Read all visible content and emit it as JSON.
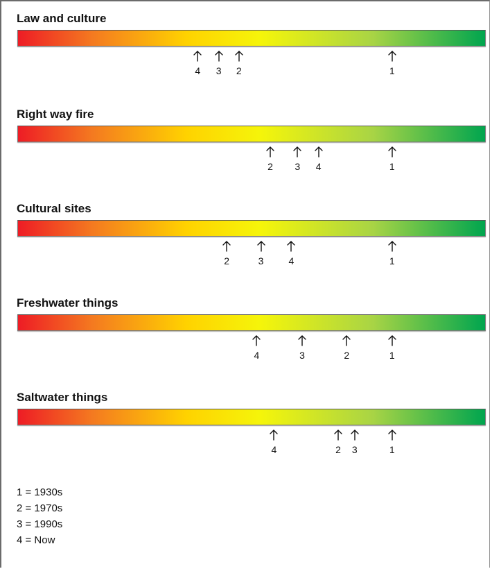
{
  "scale": {
    "colors": [
      "#ee1c25",
      "#f47a20",
      "#ffd200",
      "#f5f50a",
      "#a8d445",
      "#00a54f"
    ]
  },
  "sections": [
    {
      "title": "Law and culture",
      "markers": [
        {
          "label": "4",
          "value": 0.385
        },
        {
          "label": "3",
          "value": 0.43
        },
        {
          "label": "2",
          "value": 0.473
        },
        {
          "label": "1",
          "value": 0.8
        }
      ]
    },
    {
      "title": "Right way fire",
      "markers": [
        {
          "label": "2",
          "value": 0.54
        },
        {
          "label": "3",
          "value": 0.598
        },
        {
          "label": "4",
          "value": 0.643
        },
        {
          "label": "1",
          "value": 0.8
        }
      ]
    },
    {
      "title": "Cultural sites",
      "markers": [
        {
          "label": "2",
          "value": 0.447
        },
        {
          "label": "3",
          "value": 0.52
        },
        {
          "label": "4",
          "value": 0.585
        },
        {
          "label": "1",
          "value": 0.8
        }
      ]
    },
    {
      "title": "Freshwater things",
      "markers": [
        {
          "label": "4",
          "value": 0.511
        },
        {
          "label": "3",
          "value": 0.608
        },
        {
          "label": "2",
          "value": 0.703
        },
        {
          "label": "1",
          "value": 0.8
        }
      ]
    },
    {
      "title": "Saltwater things",
      "markers": [
        {
          "label": "4",
          "value": 0.548
        },
        {
          "label": "2",
          "value": 0.685
        },
        {
          "label": "3",
          "value": 0.72
        },
        {
          "label": "1",
          "value": 0.8
        }
      ]
    }
  ],
  "legend": [
    "1 = 1930s",
    "2 = 1970s",
    "3 = 1990s",
    "4 = Now"
  ]
}
